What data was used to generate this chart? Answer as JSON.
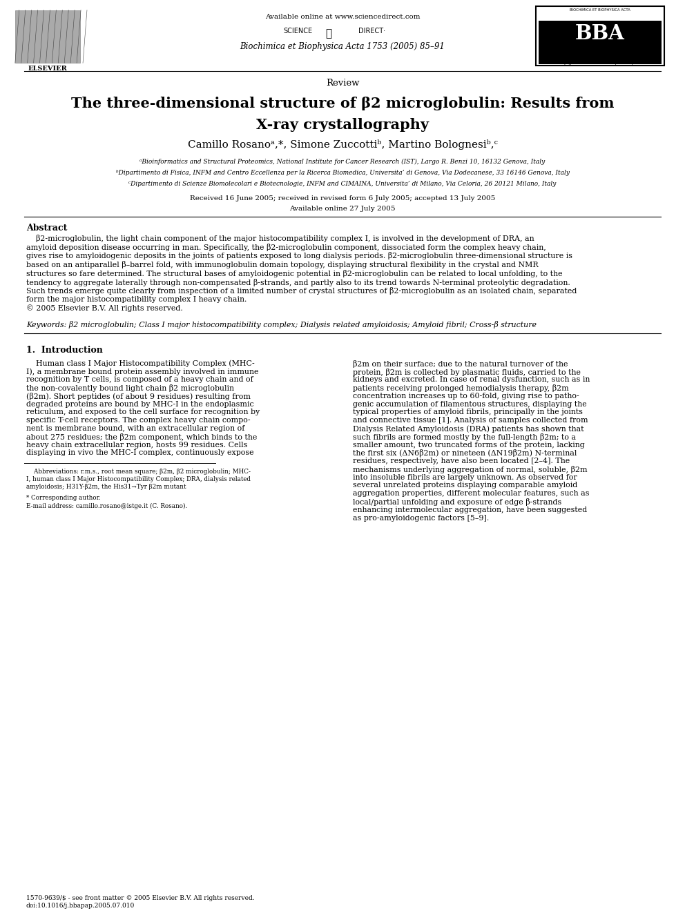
{
  "background_color": "#ffffff",
  "page_width": 9.92,
  "page_height": 13.23,
  "available_online": "Available online at www.sciencedirect.com",
  "journal_name": "Biochimica et Biophysica Acta 1753 (2005) 85–91",
  "elsevier_text": "ELSEVIER",
  "bba_url": "http://www.elsevier.com/locate/bba",
  "section_label": "Review",
  "title_line1": "The three-dimensional structure of β2 microglobulin: Results from",
  "title_line2": "X-ray crystallography",
  "affil1": "ᵃBioinformatics and Structural Proteomics, National Institute for Cancer Research (IST), Largo R. Benzi 10, 16132 Genova, Italy",
  "affil2": "ᵇDipartimento di Fisica, INFM and Centro Eccellenza per la Ricerca Biomedica, Universita’ di Genova, Via Dodecanese, 33 16146 Genova, Italy",
  "affil3": "ᶜDipartimento di Scienze Biomolecolari e Biotecnologie, INFM and CIMAINA, Universita’ di Milano, Via Celoria, 26 20121 Milano, Italy",
  "received": "Received 16 June 2005; received in revised form 6 July 2005; accepted 13 July 2005",
  "available_online2": "Available online 27 July 2005",
  "abstract_title": "Abstract",
  "abstract_lines": [
    "    β2-microglobulin, the light chain component of the major histocompatibility complex I, is involved in the development of DRA, an",
    "amyloid deposition disease occurring in man. Specifically, the β2-microglobulin component, dissociated form the complex heavy chain,",
    "gives rise to amyloidogenic deposits in the joints of patients exposed to long dialysis periods. β2-microglobulin three-dimensional structure is",
    "based on an antiparallel β–barrel fold, with immunoglobulin domain topology, displaying structural flexibility in the crystal and NMR",
    "structures so fare determined. The structural bases of amyloidogenic potential in β2-microglobulin can be related to local unfolding, to the",
    "tendency to aggregate laterally through non-compensated β-strands, and partly also to its trend towards N-terminal proteolytic degradation.",
    "Such trends emerge quite clearly from inspection of a limited number of crystal structures of β2-microglobulin as an isolated chain, separated",
    "form the major histocompatibility complex I heavy chain.",
    "© 2005 Elsevier B.V. All rights reserved."
  ],
  "keywords_line": "Keywords: β2 microglobulin; Class I major histocompatibility complex; Dialysis related amyloidosis; Amyloid fibril; Cross-β structure",
  "section1_title": "1.  Introduction",
  "intro_col1_lines": [
    "    Human class I Major Histocompatibility Complex (MHC-",
    "I), a membrane bound protein assembly involved in immune",
    "recognition by T cells, is composed of a heavy chain and of",
    "the non-covalently bound light chain β2 microglobulin",
    "(β2m). Short peptides (of about 9 residues) resulting from",
    "degraded proteins are bound by MHC-I in the endoplasmic",
    "reticulum, and exposed to the cell surface for recognition by",
    "specific T-cell receptors. The complex heavy chain compo-",
    "nent is membrane bound, with an extracellular region of",
    "about 275 residues; the β2m component, which binds to the",
    "heavy chain extracellular region, hosts 99 residues. Cells",
    "displaying in vivo the MHC-I complex, continuously expose"
  ],
  "intro_col2_lines": [
    "β2m on their surface; due to the natural turnover of the",
    "protein, β2m is collected by plasmatic fluids, carried to the",
    "kidneys and excreted. In case of renal dysfunction, such as in",
    "patients receiving prolonged hemodialysis therapy, β2m",
    "concentration increases up to 60-fold, giving rise to patho-",
    "genic accumulation of filamentous structures, displaying the",
    "typical properties of amyloid fibrils, principally in the joints",
    "and connective tissue [1]. Analysis of samples collected from",
    "Dialysis Related Amyloidosis (DRA) patients has shown that",
    "such fibrils are formed mostly by the full-length β2m; to a",
    "smaller amount, two truncated forms of the protein, lacking",
    "the first six (ΔN6β2m) or nineteen (ΔN19β2m) N-terminal",
    "residues, respectively, have also been located [2–4]. The",
    "mechanisms underlying aggregation of normal, soluble, β2m",
    "into insoluble fibrils are largely unknown. As observed for",
    "several unrelated proteins displaying comparable amyloid",
    "aggregation properties, different molecular features, such as",
    "local/partial unfolding and exposure of edge β-strands",
    "enhancing intermolecular aggregation, have been suggested",
    "as pro-amyloidogenic factors [5–9]."
  ],
  "fn_lines": [
    "    Abbreviations: r.m.s., root mean square; β2m, β2 microglobulin; MHC-",
    "I, human class I Major Histocompatibility Complex; DRA, dialysis related",
    "amyloidosis; H31Y-β2m, the His31→Tyr β2m mutant"
  ],
  "fn_corresponding": "* Corresponding author.",
  "fn_email": "E-mail address: camillo.rosano@istge.it (C. Rosano).",
  "footer_issn": "1570-9639/$ - see front matter © 2005 Elsevier B.V. All rights reserved.",
  "footer_doi": "doi:10.1016/j.bbapap.2005.07.010"
}
